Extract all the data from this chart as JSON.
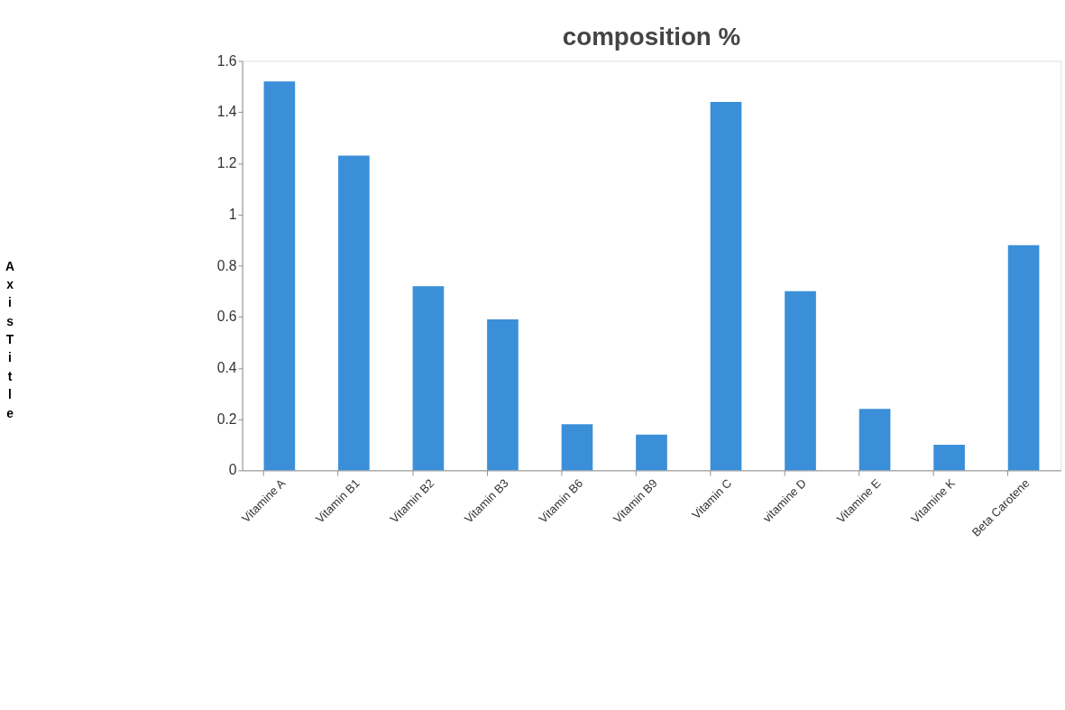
{
  "chart_data": {
    "type": "bar",
    "title": "composition %",
    "ylabel": "Axis Title",
    "categories": [
      "Vitamine A",
      "Vitamin B1",
      "Vitamin B2",
      "Vitamin B3",
      "Vitamin B6",
      "Vitamin B9",
      "Vitamin C",
      "vitamine D",
      "Vitamine E",
      "Vitamine K",
      "Beta Carotene",
      null
    ],
    "values": [
      1.52,
      1.23,
      0.72,
      0.59,
      0.18,
      0.14,
      1.44,
      0.7,
      0.24,
      0.1,
      0.88,
      null
    ],
    "color": "#3b8fd9",
    "ylim": [
      0,
      1.6
    ],
    "yticks": [
      0,
      0.2,
      0.4,
      0.6,
      0.8,
      1,
      1.2,
      1.4,
      1.6
    ],
    "grid": false
  }
}
